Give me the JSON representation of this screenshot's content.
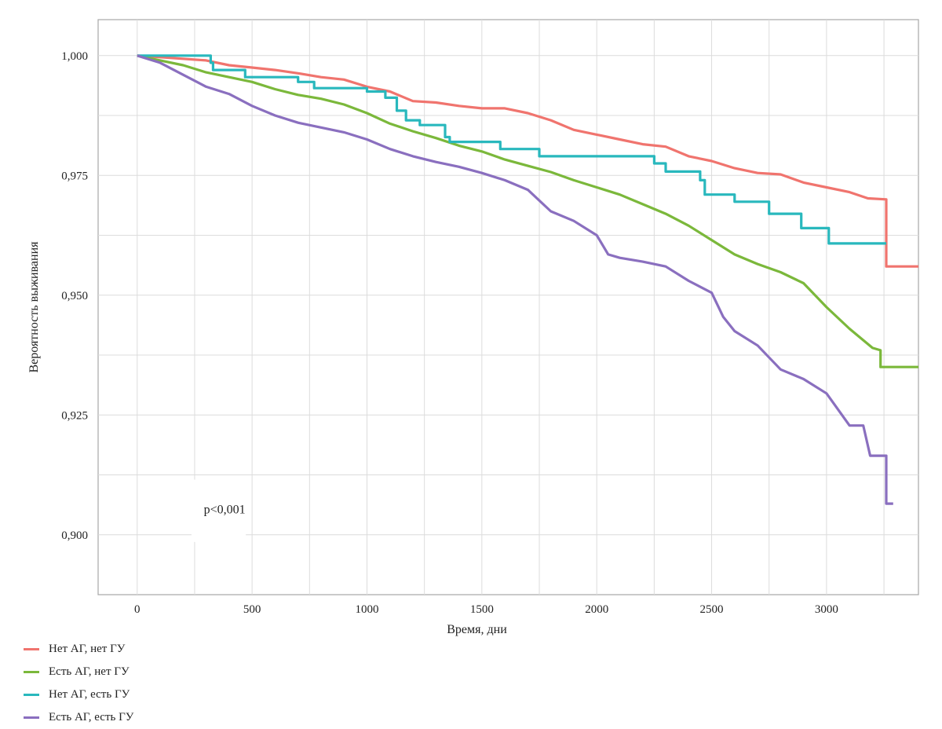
{
  "chart_data": {
    "type": "line",
    "xlabel": "Время, дни",
    "ylabel": "Вероятность выживания",
    "xlim": [
      -170,
      3400
    ],
    "ylim": [
      0.8875,
      1.0075
    ],
    "x_ticks": [
      0,
      500,
      1000,
      1500,
      2000,
      2500,
      3000
    ],
    "x_tick_labels": [
      "0",
      "500",
      "1000",
      "1500",
      "2000",
      "2500",
      "3000"
    ],
    "y_ticks": [
      0.9,
      0.925,
      0.95,
      0.975,
      1.0
    ],
    "y_tick_labels": [
      "0,900",
      "0,925",
      "0,950",
      "0,975",
      "1,000"
    ],
    "grid": true,
    "legend_position": "bottom-left",
    "annotation": "p<0,001",
    "series": [
      {
        "name": "Нет АГ, нет ГУ",
        "color": "#f0746e",
        "points": [
          [
            0,
            1.0
          ],
          [
            150,
            0.9995
          ],
          [
            300,
            0.999
          ],
          [
            400,
            0.998
          ],
          [
            500,
            0.9975
          ],
          [
            600,
            0.997
          ],
          [
            700,
            0.9963
          ],
          [
            800,
            0.9955
          ],
          [
            900,
            0.995
          ],
          [
            1000,
            0.9935
          ],
          [
            1100,
            0.9925
          ],
          [
            1200,
            0.9905
          ],
          [
            1300,
            0.9902
          ],
          [
            1400,
            0.9895
          ],
          [
            1500,
            0.989
          ],
          [
            1600,
            0.989
          ],
          [
            1700,
            0.988
          ],
          [
            1800,
            0.9865
          ],
          [
            1900,
            0.9845
          ],
          [
            2000,
            0.9835
          ],
          [
            2100,
            0.9825
          ],
          [
            2200,
            0.9815
          ],
          [
            2300,
            0.981
          ],
          [
            2400,
            0.979
          ],
          [
            2500,
            0.978
          ],
          [
            2600,
            0.9765
          ],
          [
            2700,
            0.9755
          ],
          [
            2800,
            0.9752
          ],
          [
            2900,
            0.9735
          ],
          [
            3000,
            0.9725
          ],
          [
            3100,
            0.9715
          ],
          [
            3180,
            0.9702
          ],
          [
            3260,
            0.97
          ],
          [
            3260,
            0.956
          ],
          [
            3400,
            0.956
          ]
        ]
      },
      {
        "name": "Есть АГ, нет ГУ",
        "color": "#7bb83b",
        "points": [
          [
            0,
            1.0
          ],
          [
            100,
            0.999
          ],
          [
            200,
            0.998
          ],
          [
            300,
            0.9965
          ],
          [
            400,
            0.9955
          ],
          [
            500,
            0.9945
          ],
          [
            600,
            0.993
          ],
          [
            700,
            0.9918
          ],
          [
            800,
            0.991
          ],
          [
            900,
            0.9898
          ],
          [
            1000,
            0.988
          ],
          [
            1100,
            0.9858
          ],
          [
            1200,
            0.9842
          ],
          [
            1300,
            0.9828
          ],
          [
            1400,
            0.9812
          ],
          [
            1500,
            0.98
          ],
          [
            1600,
            0.9783
          ],
          [
            1700,
            0.977
          ],
          [
            1800,
            0.9757
          ],
          [
            1900,
            0.974
          ],
          [
            2000,
            0.9725
          ],
          [
            2100,
            0.971
          ],
          [
            2200,
            0.969
          ],
          [
            2300,
            0.967
          ],
          [
            2400,
            0.9645
          ],
          [
            2500,
            0.9615
          ],
          [
            2600,
            0.9585
          ],
          [
            2700,
            0.9565
          ],
          [
            2800,
            0.9548
          ],
          [
            2900,
            0.9525
          ],
          [
            3000,
            0.9475
          ],
          [
            3100,
            0.943
          ],
          [
            3200,
            0.939
          ],
          [
            3235,
            0.9385
          ],
          [
            3235,
            0.935
          ],
          [
            3400,
            0.935
          ]
        ]
      },
      {
        "name": "Нет АГ, есть ГУ",
        "color": "#29b8bd",
        "points": [
          [
            0,
            1.0
          ],
          [
            320,
            1.0
          ],
          [
            320,
            0.9985
          ],
          [
            330,
            0.9985
          ],
          [
            330,
            0.997
          ],
          [
            470,
            0.997
          ],
          [
            470,
            0.9955
          ],
          [
            700,
            0.9955
          ],
          [
            700,
            0.9945
          ],
          [
            770,
            0.9945
          ],
          [
            770,
            0.9932
          ],
          [
            1000,
            0.9932
          ],
          [
            1000,
            0.9925
          ],
          [
            1080,
            0.9925
          ],
          [
            1080,
            0.9912
          ],
          [
            1130,
            0.9912
          ],
          [
            1130,
            0.9885
          ],
          [
            1170,
            0.9885
          ],
          [
            1170,
            0.9865
          ],
          [
            1230,
            0.9865
          ],
          [
            1230,
            0.9855
          ],
          [
            1340,
            0.9855
          ],
          [
            1340,
            0.983
          ],
          [
            1360,
            0.983
          ],
          [
            1360,
            0.982
          ],
          [
            1580,
            0.982
          ],
          [
            1580,
            0.9805
          ],
          [
            1750,
            0.9805
          ],
          [
            1750,
            0.979
          ],
          [
            2250,
            0.979
          ],
          [
            2250,
            0.9775
          ],
          [
            2300,
            0.9775
          ],
          [
            2300,
            0.9758
          ],
          [
            2450,
            0.9758
          ],
          [
            2450,
            0.974
          ],
          [
            2470,
            0.974
          ],
          [
            2470,
            0.971
          ],
          [
            2600,
            0.971
          ],
          [
            2600,
            0.9695
          ],
          [
            2750,
            0.9695
          ],
          [
            2750,
            0.967
          ],
          [
            2890,
            0.967
          ],
          [
            2890,
            0.964
          ],
          [
            3010,
            0.964
          ],
          [
            3010,
            0.9608
          ],
          [
            3260,
            0.9608
          ]
        ]
      },
      {
        "name": "Есть АГ, есть ГУ",
        "color": "#8a6fbf",
        "points": [
          [
            0,
            1.0
          ],
          [
            100,
            0.9985
          ],
          [
            200,
            0.996
          ],
          [
            300,
            0.9935
          ],
          [
            400,
            0.992
          ],
          [
            500,
            0.9895
          ],
          [
            600,
            0.9875
          ],
          [
            700,
            0.986
          ],
          [
            800,
            0.985
          ],
          [
            900,
            0.984
          ],
          [
            1000,
            0.9825
          ],
          [
            1100,
            0.9805
          ],
          [
            1200,
            0.979
          ],
          [
            1300,
            0.9778
          ],
          [
            1400,
            0.9768
          ],
          [
            1500,
            0.9755
          ],
          [
            1600,
            0.974
          ],
          [
            1700,
            0.972
          ],
          [
            1800,
            0.9675
          ],
          [
            1900,
            0.9655
          ],
          [
            2000,
            0.9625
          ],
          [
            2050,
            0.9585
          ],
          [
            2100,
            0.9578
          ],
          [
            2200,
            0.957
          ],
          [
            2300,
            0.956
          ],
          [
            2400,
            0.953
          ],
          [
            2500,
            0.9505
          ],
          [
            2550,
            0.9455
          ],
          [
            2600,
            0.9425
          ],
          [
            2700,
            0.9395
          ],
          [
            2800,
            0.9345
          ],
          [
            2900,
            0.9325
          ],
          [
            3000,
            0.9295
          ],
          [
            3100,
            0.9228
          ],
          [
            3160,
            0.9228
          ],
          [
            3190,
            0.9165
          ],
          [
            3260,
            0.9165
          ],
          [
            3260,
            0.9065
          ],
          [
            3290,
            0.9065
          ]
        ]
      }
    ]
  }
}
